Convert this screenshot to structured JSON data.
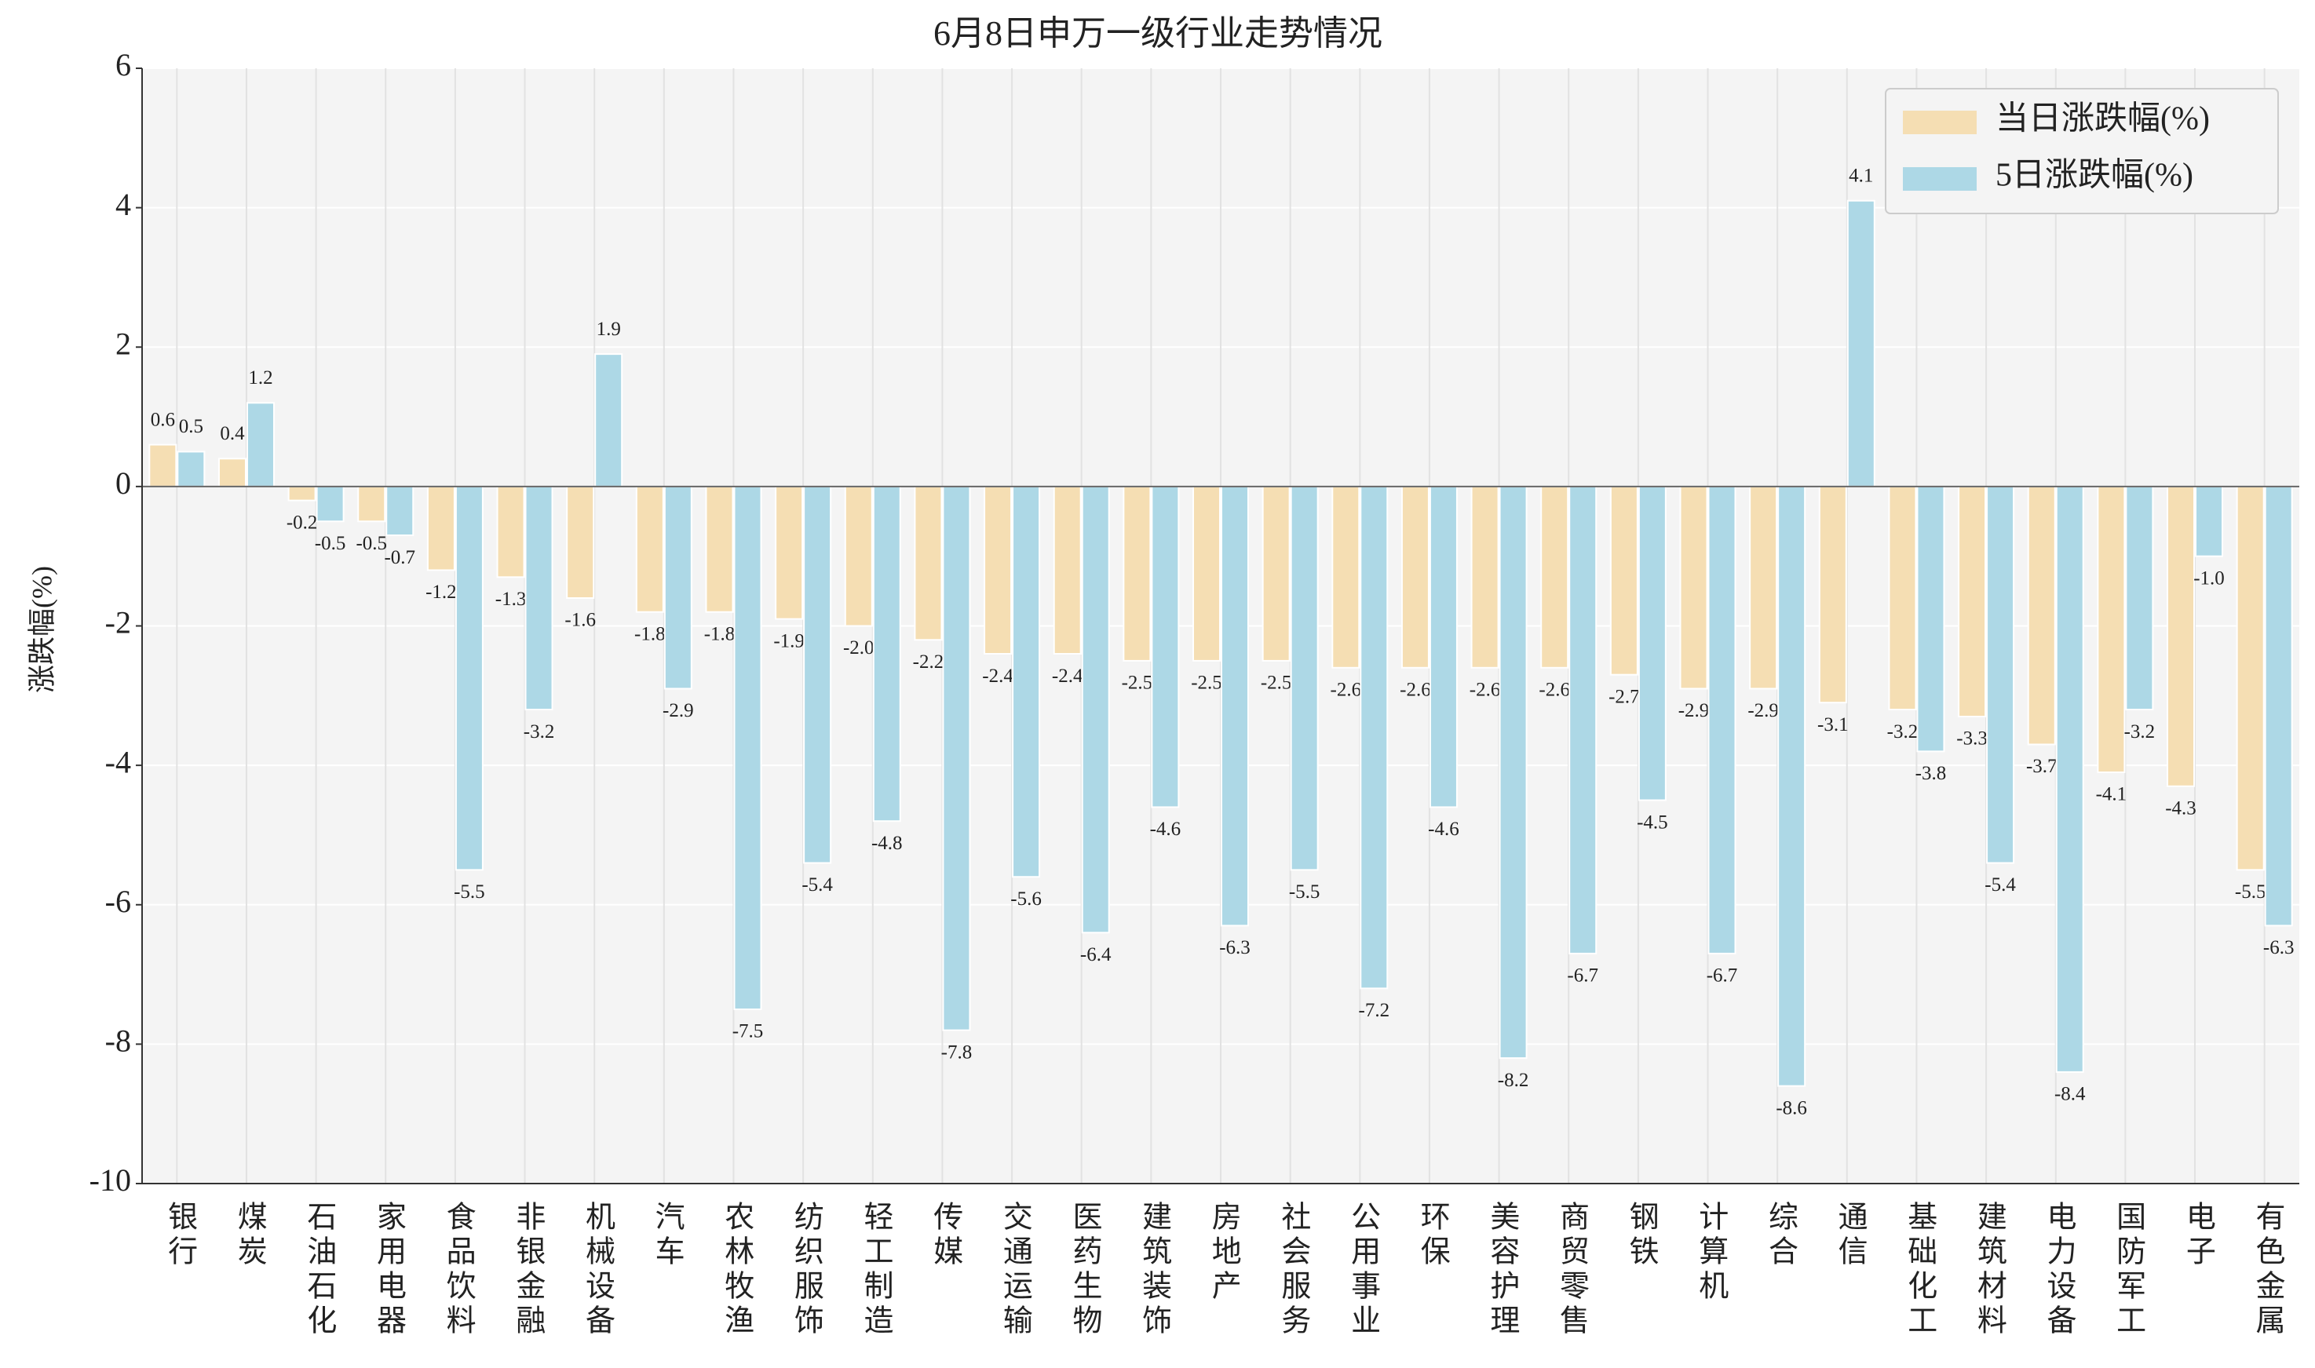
{
  "chart_data": {
    "type": "bar",
    "title": "6月8日申万一级行业走势情况",
    "y_label": "涨跌幅(%)",
    "categories": [
      "银行",
      "煤炭",
      "石油石化",
      "家用电器",
      "食品饮料",
      "非银金融",
      "机械设备",
      "汽车",
      "农林牧渔",
      "纺织服饰",
      "轻工制造",
      "传媒",
      "交通运输",
      "医药生物",
      "建筑装饰",
      "房地产",
      "社会服务",
      "公用事业",
      "环保",
      "美容护理",
      "商贸零售",
      "钢铁",
      "计算机",
      "综合",
      "通信",
      "基础化工",
      "建筑材料",
      "电力设备",
      "国防军工",
      "电子",
      "有色金属"
    ],
    "series": [
      {
        "name": "当日涨跌幅(%)",
        "color": "#f5deb3",
        "values": [
          0.6,
          0.4,
          -0.2,
          -0.5,
          -1.2,
          -1.3,
          -1.6,
          -1.8,
          -1.8,
          -1.9,
          -2.0,
          -2.2,
          -2.4,
          -2.4,
          -2.5,
          -2.5,
          -2.5,
          -2.6,
          -2.6,
          -2.6,
          -2.6,
          -2.7,
          -2.9,
          -2.9,
          -3.1,
          -3.2,
          -3.3,
          -3.7,
          -4.1,
          -4.3,
          -5.5
        ],
        "value_labels": [
          "0.6",
          "0.4",
          "-0.2",
          "-0.5",
          "-1.2",
          "-1.3",
          "-1.6",
          "-1.8",
          "-1.8",
          "-1.9",
          "-2.0",
          "-2.2",
          "-2.4",
          "-2.4",
          "-2.5",
          "-2.5",
          "-2.5",
          "-2.6",
          "-2.6",
          "-2.6",
          "-2.6",
          "-2.7",
          "-2.9",
          "-2.9",
          "-3.1",
          "-3.2",
          "-3.3",
          "-3.7",
          "-4.1",
          "-4.3",
          "-5.5"
        ]
      },
      {
        "name": "5日涨跌幅(%)",
        "color": "#add8e6",
        "values": [
          0.5,
          1.2,
          -0.5,
          -0.7,
          -5.5,
          -3.2,
          1.9,
          -2.9,
          -7.5,
          -5.4,
          -4.8,
          -7.8,
          -5.6,
          -6.4,
          -4.6,
          -6.3,
          -5.5,
          -7.2,
          -4.6,
          -8.2,
          -6.7,
          -4.5,
          -6.7,
          -8.6,
          4.1,
          -3.8,
          -5.4,
          -8.4,
          -3.2,
          -1.0,
          -6.3
        ],
        "value_labels": [
          "0.5",
          "1.2",
          "-0.5",
          "-0.7",
          "-5.5",
          "-3.2",
          "1.9",
          "-2.9",
          "-7.5",
          "-5.4",
          "-4.8",
          "-7.8",
          "-5.6",
          "-6.4",
          "-4.6",
          "-6.3",
          "-5.5",
          "-7.2",
          "-4.6",
          "-8.2",
          "-6.7",
          "-4.5",
          "-6.7",
          "-8.6",
          "4.1",
          "-3.8",
          "-5.4",
          "-8.4",
          "-3.2",
          "-1.0",
          "-6.3"
        ]
      }
    ],
    "ylim": [
      -10,
      6
    ],
    "yticks": [
      -10,
      -8,
      -6,
      -4,
      -2,
      0,
      2,
      4,
      6
    ],
    "grid": true,
    "legend": "upper right"
  }
}
